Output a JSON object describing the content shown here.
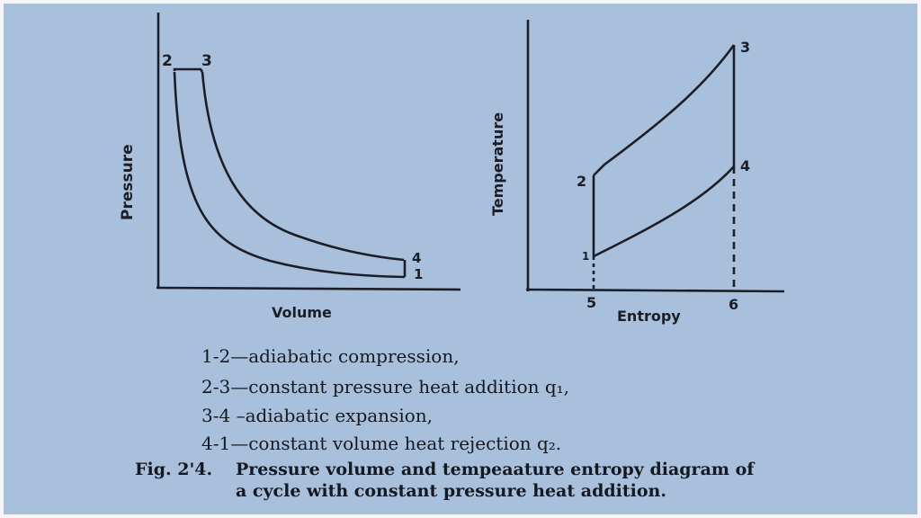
{
  "pv_diagram": {
    "y_label": "Pressure",
    "x_label": "Volume",
    "points": [
      "1",
      "2",
      "3",
      "4"
    ]
  },
  "ts_diagram": {
    "y_label": "Temperature",
    "x_label": "Entropy",
    "points": [
      "1",
      "2",
      "3",
      "4"
    ],
    "axis_marks": [
      "5",
      "6"
    ]
  },
  "legend": [
    "1-2—adiabatic compression,",
    "2-3—constant pressure heat addition q₁,",
    "3-4 –adiabatic expansion,",
    "4-1—constant  volume heat rejection q₂."
  ],
  "caption": {
    "label": "Fig. 2'4.",
    "line1": "Pressure volume and tempeaature entropy diagram of",
    "line2": "a cycle with constant pressure heat addition."
  },
  "colors": {
    "paper": "#a9c0dd",
    "ink": "#1b1e26"
  }
}
